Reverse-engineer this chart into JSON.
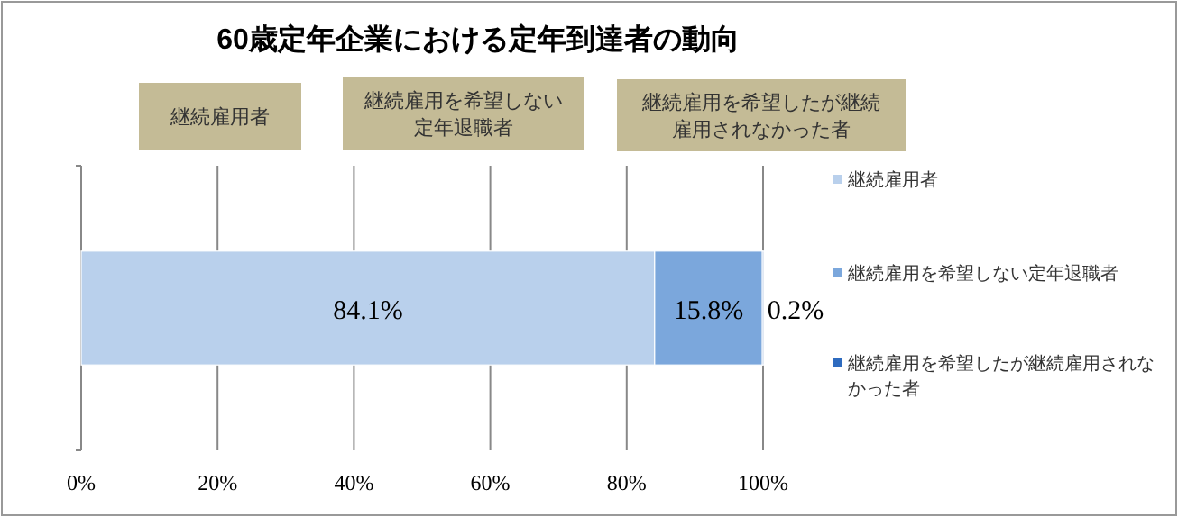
{
  "chart_data": {
    "type": "bar",
    "orientation": "horizontal",
    "stacked": true,
    "title": "60歳定年企業における定年到達者の動向",
    "annotations": [
      "継続雇用者",
      "継続雇用を希望しない定年退職者",
      "継続雇用を希望したが継続雇用されなかった者"
    ],
    "categories": [
      null
    ],
    "series": [
      {
        "name": "継続雇用者",
        "color": "#b9d0ec",
        "values": [
          84.1
        ],
        "value_labels": [
          "84.1%"
        ]
      },
      {
        "name": "継続雇用を希望しない定年退職者",
        "color": "#7ba7dc",
        "values": [
          15.8
        ],
        "value_labels": [
          "15.8%"
        ]
      },
      {
        "name": "継続雇用を希望したが継続雇用されなかった者",
        "color": "#2e6bbf",
        "values": [
          0.2
        ],
        "value_labels": [
          "0.2%"
        ]
      }
    ],
    "xlim": [
      0,
      100
    ],
    "xticks": [
      {
        "value": 0,
        "label": "0%"
      },
      {
        "value": 20,
        "label": "20%"
      },
      {
        "value": 40,
        "label": "40%"
      },
      {
        "value": 60,
        "label": "60%"
      },
      {
        "value": 80,
        "label": "80%"
      },
      {
        "value": 100,
        "label": "100%"
      }
    ],
    "grid": "x",
    "legend": "right"
  }
}
